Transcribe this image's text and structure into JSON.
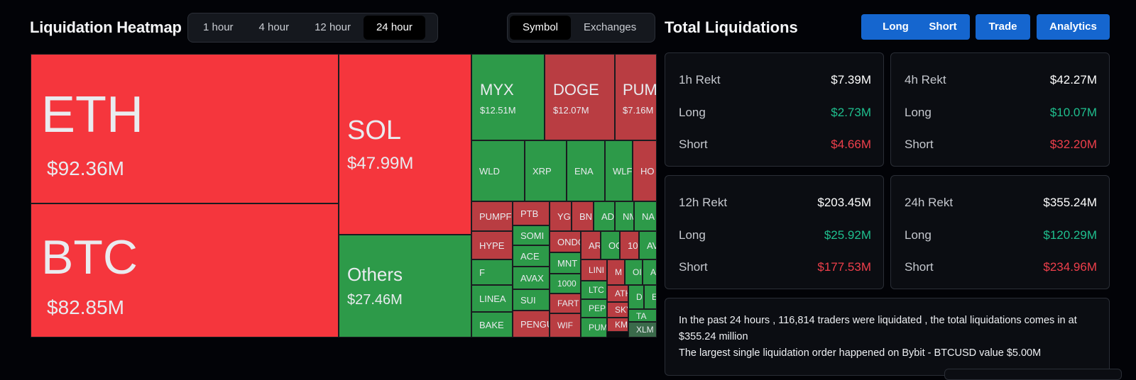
{
  "heatmap": {
    "title": "Liquidation Heatmap",
    "ranges": [
      "1 hour",
      "4 hour",
      "12 hour",
      "24 hour"
    ],
    "active_range": "24 hour",
    "views": [
      "Symbol",
      "Exchanges"
    ],
    "active_view": "Symbol",
    "tiles": {
      "eth": {
        "sym": "ETH",
        "val": "$92.36M"
      },
      "btc": {
        "sym": "BTC",
        "val": "$82.85M"
      },
      "sol": {
        "sym": "SOL",
        "val": "$47.99M"
      },
      "others": {
        "sym": "Others",
        "val": "$27.46M"
      },
      "myx": {
        "sym": "MYX",
        "val": "$12.51M"
      },
      "doge": {
        "sym": "DOGE",
        "val": "$12.07M"
      },
      "pump": {
        "sym": "PUM",
        "val": "$7.16M"
      },
      "small": [
        "WLD",
        "XRP",
        "ENA",
        "WLF",
        "HO",
        "PUMPF",
        "PTB",
        "YG",
        "BN",
        "AD",
        "NM",
        "NA",
        "HYPE",
        "SOMI",
        "ONDO",
        "AR",
        "OG",
        "10",
        "AV",
        "F",
        "ACE",
        "MNT",
        "LINI",
        "M",
        "OI",
        "A",
        "LINEA",
        "AVAX",
        "1000",
        "LTC",
        "ATH",
        "D",
        "E",
        "SUI",
        "FART",
        "PEP",
        "SKY",
        "TA",
        "BAKE",
        "PENGU",
        "WIF",
        "PUM",
        "KM",
        "XLM"
      ]
    }
  },
  "totals": {
    "title": "Total Liquidations",
    "buttons": [
      "Long",
      "Short",
      "Trade",
      "Analytics"
    ],
    "labels": {
      "long": "Long",
      "short": "Short"
    },
    "cards": [
      {
        "title": "1h Rekt",
        "total": "$7.39M",
        "long": "$2.73M",
        "short": "$4.66M"
      },
      {
        "title": "4h Rekt",
        "total": "$42.27M",
        "long": "$10.07M",
        "short": "$32.20M"
      },
      {
        "title": "12h Rekt",
        "total": "$203.45M",
        "long": "$25.92M",
        "short": "$177.53M"
      },
      {
        "title": "24h Rekt",
        "total": "$355.24M",
        "long": "$120.29M",
        "short": "$234.96M"
      }
    ],
    "summary": {
      "line1": "In the past 24 hours , 116,814 traders were liquidated , the total liquidations comes in at $355.24 million",
      "line2": "The largest single liquidation order happened on Bybit - BTCUSD value $5.00M"
    }
  },
  "colors": {
    "long_green": "#1fbf8e",
    "short_red": "#ef3f4b",
    "tile_red": "#f5363d",
    "tile_green": "#2d9a49",
    "button_blue": "#1566cf"
  }
}
